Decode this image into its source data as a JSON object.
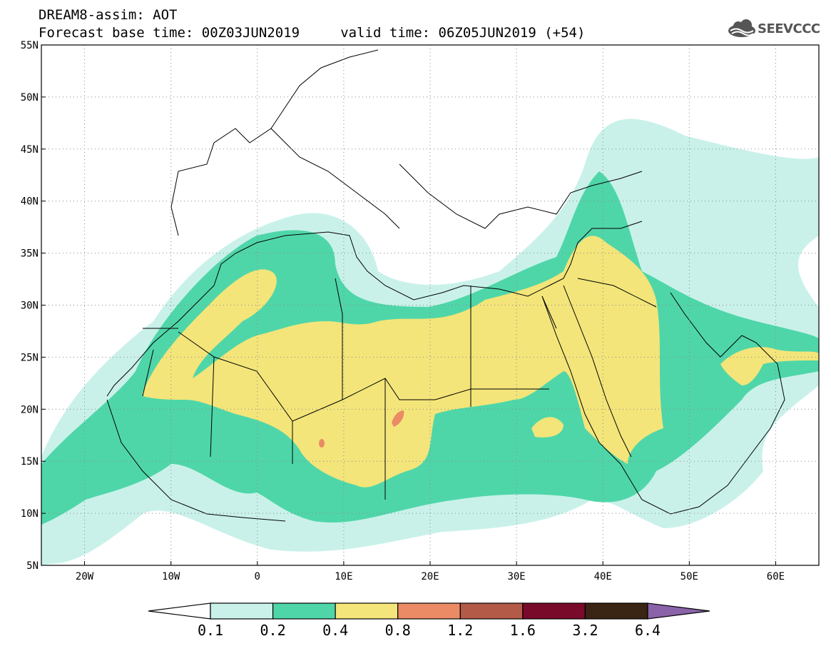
{
  "header": {
    "line1": "DREAM8-assim: AOT",
    "line2": "Forecast base time: 00Z03JUN2019     valid time: 06Z05JUN2019 (+54)"
  },
  "logo": {
    "text": "SEEVCCC",
    "icon": "cloud-icon"
  },
  "map": {
    "lon_range": [
      -25,
      65
    ],
    "lat_range": [
      5,
      55
    ],
    "lat_ticks": [
      {
        "value": 55,
        "label": "55N"
      },
      {
        "value": 50,
        "label": "50N"
      },
      {
        "value": 45,
        "label": "45N"
      },
      {
        "value": 40,
        "label": "40N"
      },
      {
        "value": 35,
        "label": "35N"
      },
      {
        "value": 30,
        "label": "30N"
      },
      {
        "value": 25,
        "label": "25N"
      },
      {
        "value": 20,
        "label": "20N"
      },
      {
        "value": 15,
        "label": "15N"
      },
      {
        "value": 10,
        "label": "10N"
      },
      {
        "value": 5,
        "label": "5N"
      }
    ],
    "lon_ticks": [
      {
        "value": -20,
        "label": "20W"
      },
      {
        "value": -10,
        "label": "10W"
      },
      {
        "value": 0,
        "label": "0"
      },
      {
        "value": 10,
        "label": "10E"
      },
      {
        "value": 20,
        "label": "20E"
      },
      {
        "value": 30,
        "label": "30E"
      },
      {
        "value": 40,
        "label": "40E"
      },
      {
        "value": 50,
        "label": "50E"
      },
      {
        "value": 60,
        "label": "60E"
      }
    ],
    "grid": "dotted",
    "field": "AOT"
  },
  "colorbar": {
    "labels": [
      "0.1",
      "0.2",
      "0.4",
      "0.8",
      "1.2",
      "1.6",
      "3.2",
      "6.4"
    ],
    "colors": [
      "#ffffff",
      "#c9f1ea",
      "#4fd6a8",
      "#f3e57a",
      "#ea8b66",
      "#b45a48",
      "#7a0a2a",
      "#3a2414",
      "#8a63a8"
    ]
  }
}
